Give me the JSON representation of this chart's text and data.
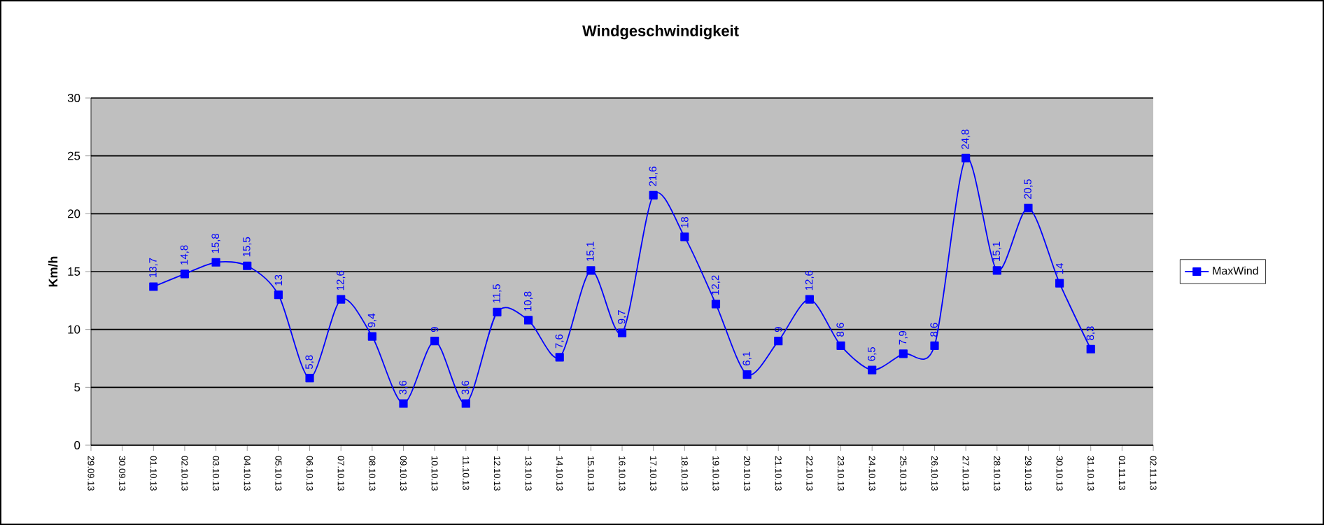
{
  "chart_data": {
    "type": "line",
    "title": "Windgeschwindigkeit",
    "ylabel": "Km/h",
    "categories": [
      "29.09.13",
      "30.09.13",
      "01.10.13",
      "02.10.13",
      "03.10.13",
      "04.10.13",
      "05.10.13",
      "06.10.13",
      "07.10.13",
      "08.10.13",
      "09.10.13",
      "10.10.13",
      "11.10.13",
      "12.10.13",
      "13.10.13",
      "14.10.13",
      "15.10.13",
      "16.10.13",
      "17.10.13",
      "18.10.13",
      "19.10.13",
      "20.10.13",
      "21.10.13",
      "22.10.13",
      "23.10.13",
      "24.10.13",
      "25.10.13",
      "26.10.13",
      "27.10.13",
      "28.10.13",
      "29.10.13",
      "30.10.13",
      "31.10.13",
      "01.11.13",
      "02.11.13"
    ],
    "series": [
      {
        "name": "MaxWind",
        "color": "#0000ff",
        "values": [
          null,
          null,
          13.7,
          14.8,
          15.8,
          15.5,
          13,
          5.8,
          12.6,
          9.4,
          3.6,
          9,
          3.6,
          11.5,
          10.8,
          7.6,
          15.1,
          9.7,
          21.6,
          18,
          12.2,
          6.1,
          9,
          12.6,
          8.6,
          6.5,
          7.9,
          8.6,
          24.8,
          15.1,
          20.5,
          14,
          8.3,
          null,
          null
        ],
        "value_labels": [
          null,
          null,
          "13,7",
          "14,8",
          "15,8",
          "15,5",
          "13",
          "5,8",
          "12,6",
          "9,4",
          "3,6",
          "9",
          "3,6",
          "11,5",
          "10,8",
          "7,6",
          "15,1",
          "9,7",
          "21,6",
          "18",
          "12,2",
          "6,1",
          "9",
          "12,6",
          "8,6",
          "6,5",
          "7,9",
          "8,6",
          "24,8",
          "15,1",
          "20,5",
          "14",
          "8,3",
          null,
          null
        ]
      }
    ],
    "ylim": [
      0,
      30
    ],
    "yticks": [
      0,
      5,
      10,
      15,
      20,
      25,
      30
    ],
    "grid": "y",
    "legend": "right",
    "marker": "square",
    "line_style": "solid"
  }
}
